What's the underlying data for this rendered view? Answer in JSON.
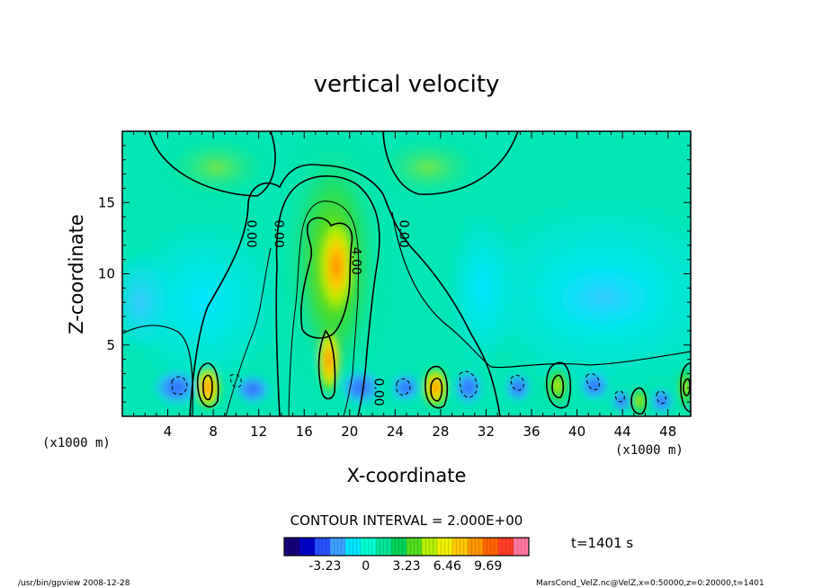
{
  "chart_data": {
    "type": "heatmap",
    "title": "vertical velocity",
    "xlabel": "X-coordinate",
    "ylabel": "Z-coordinate",
    "x_unit_label": "(x1000 m)",
    "xlim": [
      0,
      50
    ],
    "ylim": [
      0,
      20
    ],
    "x_ticks": [
      4,
      8,
      12,
      16,
      20,
      24,
      28,
      32,
      36,
      40,
      44,
      48
    ],
    "y_ticks": [
      5,
      10,
      15
    ],
    "contour_interval_text": "CONTOUR INTERVAL = 2.000E+00",
    "contour_labels": [
      {
        "text": "0.00",
        "x": 10.6,
        "z": 12.8
      },
      {
        "text": "0.00",
        "x": 13.0,
        "z": 12.8
      },
      {
        "text": "4.00",
        "x": 19.8,
        "z": 10.9
      },
      {
        "text": "0.00",
        "x": 24.0,
        "z": 12.8
      },
      {
        "text": "0.00",
        "x": 21.8,
        "z": 1.7
      }
    ],
    "colorbar": {
      "min": -6.46,
      "max": 12.92,
      "tick_labels": [
        "-3.23",
        "0",
        "3.23",
        "6.46",
        "9.69"
      ],
      "tick_values": [
        -3.23,
        0,
        3.23,
        6.46,
        9.69
      ],
      "colors": [
        "#14007a",
        "#0000c8",
        "#2850ff",
        "#3ca0ff",
        "#00e6ff",
        "#00ffd2",
        "#00e696",
        "#00d25a",
        "#50dc1e",
        "#b4f000",
        "#f0f000",
        "#ffc800",
        "#ff9600",
        "#ff6400",
        "#ff3c28",
        "#ff78a0"
      ]
    },
    "time_label": "t=1401 s",
    "features": [
      {
        "label": "central updraft column",
        "x": 18.5,
        "z": 8,
        "value": 7.5
      },
      {
        "label": "updraft cell",
        "x": 7.5,
        "z": 2,
        "value": 5.5
      },
      {
        "label": "updraft cell",
        "x": 27.5,
        "z": 2,
        "value": 5.0
      },
      {
        "label": "updraft cell",
        "x": 38.5,
        "z": 2.2,
        "value": 4.5
      },
      {
        "label": "updraft cell",
        "x": 45.0,
        "z": 1.2,
        "value": 2.5
      },
      {
        "label": "updraft cell",
        "x": 49.3,
        "z": 2.2,
        "value": 3.0
      },
      {
        "label": "downdraft cell",
        "x": 5.0,
        "z": 2.0,
        "value": -3.0
      },
      {
        "label": "downdraft cell",
        "x": 30.5,
        "z": 2.0,
        "value": -2.5
      },
      {
        "label": "broad weak downdraft",
        "x": 42.0,
        "z": 8.5,
        "value": -1.3
      }
    ]
  },
  "footer": {
    "left": "/usr/bin/gpview   2008-12-28",
    "right": "MarsCond_VelZ.nc@VelZ,x=0:50000,z=0:20000,t=1401"
  },
  "colors": {
    "background_field": "#00e6b4",
    "contour_line": "#000000"
  }
}
